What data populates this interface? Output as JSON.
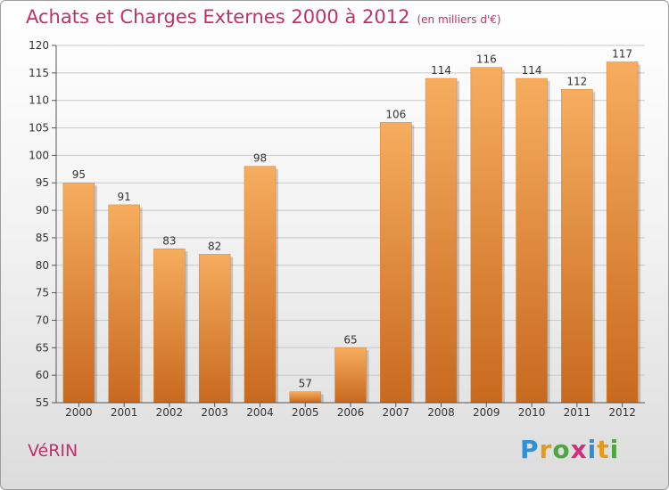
{
  "title": "Achats et Charges Externes 2000 à 2012",
  "subtitle": "(en milliers d'€)",
  "place": "VéRIN",
  "logo": {
    "text": "Proxiti",
    "letters": [
      "P",
      "r",
      "o",
      "x",
      "i",
      "t",
      "i"
    ],
    "colors": [
      "#2f8fd6",
      "#e69a1a",
      "#4aa83f",
      "#d62e7c",
      "#2f8fd6",
      "#e69a1a",
      "#4aa83f"
    ]
  },
  "colors": {
    "bar": "#f0953a",
    "bar_light": "#f6ad5f",
    "bar_dark": "#c8691e",
    "grid": "#c8c8c8",
    "axis": "#555555",
    "title": "#c0306a"
  },
  "chart_data": {
    "type": "bar",
    "categories": [
      "2000",
      "2001",
      "2002",
      "2003",
      "2004",
      "2005",
      "2006",
      "2007",
      "2008",
      "2009",
      "2010",
      "2011",
      "2012"
    ],
    "values": [
      95,
      91,
      83,
      82,
      98,
      57,
      65,
      106,
      114,
      116,
      114,
      112,
      117
    ],
    "yticks": [
      55,
      60,
      65,
      70,
      75,
      80,
      85,
      90,
      95,
      100,
      105,
      110,
      115,
      120
    ],
    "ylim": [
      55,
      120
    ],
    "grid": true,
    "title": "Achats et Charges Externes 2000 à 2012",
    "subtitle": "(en milliers d'€)",
    "xlabel": "",
    "ylabel": ""
  }
}
